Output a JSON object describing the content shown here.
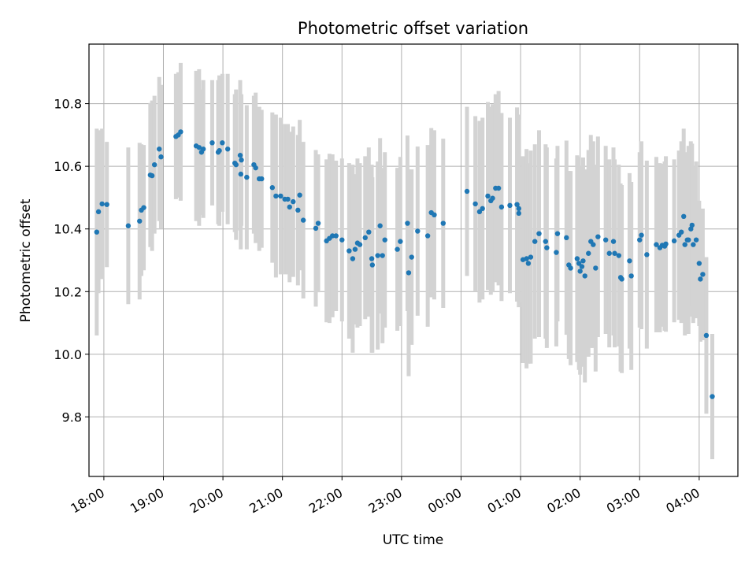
{
  "chart_data": {
    "type": "scatter",
    "title": "Photometric offset variation",
    "xlabel": "UTC time",
    "ylabel": "Photometric offset",
    "grid": true,
    "x_unit": "hours since 18:00 UTC (values beyond 6.0 are after midnight)",
    "xlim": [
      -0.25,
      10.65
    ],
    "ylim": [
      9.61,
      10.99
    ],
    "x_ticks": [
      {
        "value": 0,
        "label": "18:00"
      },
      {
        "value": 1,
        "label": "19:00"
      },
      {
        "value": 2,
        "label": "20:00"
      },
      {
        "value": 3,
        "label": "21:00"
      },
      {
        "value": 4,
        "label": "22:00"
      },
      {
        "value": 5,
        "label": "23:00"
      },
      {
        "value": 6,
        "label": "00:00"
      },
      {
        "value": 7,
        "label": "01:00"
      },
      {
        "value": 8,
        "label": "02:00"
      },
      {
        "value": 9,
        "label": "03:00"
      },
      {
        "value": 10,
        "label": "04:00"
      }
    ],
    "y_ticks": [
      {
        "value": 9.8,
        "label": "9.8"
      },
      {
        "value": 10.0,
        "label": "10.0"
      },
      {
        "value": 10.2,
        "label": "10.2"
      },
      {
        "value": 10.4,
        "label": "10.4"
      },
      {
        "value": 10.6,
        "label": "10.6"
      },
      {
        "value": 10.8,
        "label": "10.8"
      }
    ],
    "marker_color": "#1f77b4",
    "errorbar_color": "#d3d3d3",
    "series": [
      {
        "name": "offset",
        "points": [
          [
            -0.12,
            10.39,
            0.33
          ],
          [
            -0.09,
            10.455,
            0.26
          ],
          [
            -0.03,
            10.48,
            0.24
          ],
          [
            0.05,
            10.478,
            0.2
          ],
          [
            0.41,
            10.41,
            0.25
          ],
          [
            0.6,
            10.425,
            0.25
          ],
          [
            0.63,
            10.46,
            0.21
          ],
          [
            0.67,
            10.468,
            0.2
          ],
          [
            0.78,
            10.572,
            0.23
          ],
          [
            0.81,
            10.57,
            0.24
          ],
          [
            0.85,
            10.605,
            0.22
          ],
          [
            0.93,
            10.655,
            0.23
          ],
          [
            0.96,
            10.63,
            0.23
          ],
          [
            1.21,
            10.695,
            0.2
          ],
          [
            1.25,
            10.7,
            0.2
          ],
          [
            1.29,
            10.71,
            0.22
          ],
          [
            1.55,
            10.665,
            0.24
          ],
          [
            1.6,
            10.66,
            0.25
          ],
          [
            1.64,
            10.645,
            0.2
          ],
          [
            1.67,
            10.655,
            0.22
          ],
          [
            1.82,
            10.675,
            0.2
          ],
          [
            1.92,
            10.645,
            0.23
          ],
          [
            1.94,
            10.65,
            0.24
          ],
          [
            1.99,
            10.675,
            0.22
          ],
          [
            2.08,
            10.655,
            0.24
          ],
          [
            2.2,
            10.61,
            0.22
          ],
          [
            2.22,
            10.605,
            0.24
          ],
          [
            2.29,
            10.635,
            0.24
          ],
          [
            2.31,
            10.62,
            0.21
          ],
          [
            2.3,
            10.575,
            0.24
          ],
          [
            2.4,
            10.565,
            0.23
          ],
          [
            2.52,
            10.605,
            0.22
          ],
          [
            2.55,
            10.595,
            0.24
          ],
          [
            2.61,
            10.56,
            0.23
          ],
          [
            2.65,
            10.56,
            0.22
          ],
          [
            2.83,
            10.532,
            0.24
          ],
          [
            2.89,
            10.505,
            0.26
          ],
          [
            2.97,
            10.505,
            0.25
          ],
          [
            3.04,
            10.495,
            0.24
          ],
          [
            3.09,
            10.495,
            0.24
          ],
          [
            3.12,
            10.47,
            0.24
          ],
          [
            3.18,
            10.487,
            0.24
          ],
          [
            3.26,
            10.46,
            0.24
          ],
          [
            3.29,
            10.508,
            0.24
          ],
          [
            3.35,
            10.428,
            0.25
          ],
          [
            3.56,
            10.402,
            0.25
          ],
          [
            3.6,
            10.418,
            0.22
          ],
          [
            3.74,
            10.362,
            0.26
          ],
          [
            3.79,
            10.37,
            0.27
          ],
          [
            3.84,
            10.378,
            0.26
          ],
          [
            3.9,
            10.378,
            0.24
          ],
          [
            4.0,
            10.365,
            0.26
          ],
          [
            4.12,
            10.33,
            0.28
          ],
          [
            4.18,
            10.305,
            0.3
          ],
          [
            4.22,
            10.335,
            0.24
          ],
          [
            4.26,
            10.355,
            0.27
          ],
          [
            4.3,
            10.35,
            0.26
          ],
          [
            4.39,
            10.372,
            0.26
          ],
          [
            4.45,
            10.39,
            0.27
          ],
          [
            4.5,
            10.305,
            0.3
          ],
          [
            4.51,
            10.285,
            0.28
          ],
          [
            4.6,
            10.315,
            0.3
          ],
          [
            4.64,
            10.41,
            0.28
          ],
          [
            4.68,
            10.315,
            0.28
          ],
          [
            4.72,
            10.365,
            0.28
          ],
          [
            4.93,
            10.335,
            0.26
          ],
          [
            4.98,
            10.36,
            0.27
          ],
          [
            5.1,
            10.418,
            0.28
          ],
          [
            5.12,
            10.26,
            0.33
          ],
          [
            5.17,
            10.31,
            0.28
          ],
          [
            5.27,
            10.393,
            0.27
          ],
          [
            5.44,
            10.378,
            0.29
          ],
          [
            5.5,
            10.452,
            0.27
          ],
          [
            5.55,
            10.445,
            0.27
          ],
          [
            5.7,
            10.418,
            0.27
          ],
          [
            6.1,
            10.52,
            0.27
          ],
          [
            6.24,
            10.48,
            0.28
          ],
          [
            6.31,
            10.455,
            0.29
          ],
          [
            6.36,
            10.465,
            0.29
          ],
          [
            6.45,
            10.505,
            0.3
          ],
          [
            6.5,
            10.49,
            0.3
          ],
          [
            6.53,
            10.498,
            0.3
          ],
          [
            6.58,
            10.53,
            0.3
          ],
          [
            6.63,
            10.53,
            0.31
          ],
          [
            6.68,
            10.47,
            0.3
          ],
          [
            6.82,
            10.475,
            0.28
          ],
          [
            6.94,
            10.478,
            0.31
          ],
          [
            6.97,
            10.465,
            0.3
          ],
          [
            6.97,
            10.45,
            0.3
          ],
          [
            7.04,
            10.302,
            0.33
          ],
          [
            7.1,
            10.305,
            0.35
          ],
          [
            7.13,
            10.29,
            0.32
          ],
          [
            7.17,
            10.31,
            0.34
          ],
          [
            7.24,
            10.36,
            0.31
          ],
          [
            7.31,
            10.385,
            0.33
          ],
          [
            7.42,
            10.36,
            0.31
          ],
          [
            7.44,
            10.34,
            0.32
          ],
          [
            7.6,
            10.325,
            0.3
          ],
          [
            7.62,
            10.385,
            0.28
          ],
          [
            7.77,
            10.372,
            0.31
          ],
          [
            7.81,
            10.285,
            0.3
          ],
          [
            7.84,
            10.275,
            0.31
          ],
          [
            7.95,
            10.305,
            0.33
          ],
          [
            7.98,
            10.29,
            0.34
          ],
          [
            8.0,
            10.265,
            0.33
          ],
          [
            8.03,
            10.28,
            0.32
          ],
          [
            8.05,
            10.298,
            0.33
          ],
          [
            8.08,
            10.25,
            0.34
          ],
          [
            8.14,
            10.322,
            0.33
          ],
          [
            8.18,
            10.36,
            0.34
          ],
          [
            8.22,
            10.35,
            0.33
          ],
          [
            8.26,
            10.275,
            0.33
          ],
          [
            8.3,
            10.375,
            0.32
          ],
          [
            8.43,
            10.365,
            0.3
          ],
          [
            8.49,
            10.322,
            0.3
          ],
          [
            8.56,
            10.36,
            0.3
          ],
          [
            8.58,
            10.322,
            0.3
          ],
          [
            8.65,
            10.315,
            0.29
          ],
          [
            8.68,
            10.245,
            0.3
          ],
          [
            8.7,
            10.24,
            0.3
          ],
          [
            8.83,
            10.298,
            0.28
          ],
          [
            8.86,
            10.25,
            0.3
          ],
          [
            9.0,
            10.365,
            0.28
          ],
          [
            9.03,
            10.38,
            0.3
          ],
          [
            9.12,
            10.318,
            0.3
          ],
          [
            9.28,
            10.35,
            0.28
          ],
          [
            9.34,
            10.34,
            0.27
          ],
          [
            9.38,
            10.348,
            0.26
          ],
          [
            9.42,
            10.345,
            0.27
          ],
          [
            9.44,
            10.352,
            0.28
          ],
          [
            9.58,
            10.362,
            0.26
          ],
          [
            9.66,
            10.38,
            0.27
          ],
          [
            9.7,
            10.39,
            0.29
          ],
          [
            9.74,
            10.44,
            0.28
          ],
          [
            9.76,
            10.35,
            0.29
          ],
          [
            9.8,
            10.365,
            0.28
          ],
          [
            9.82,
            10.365,
            0.3
          ],
          [
            9.86,
            10.4,
            0.28
          ],
          [
            9.88,
            10.412,
            0.26
          ],
          [
            9.9,
            10.35,
            0.25
          ],
          [
            9.95,
            10.365,
            0.25
          ],
          [
            10.0,
            10.29,
            0.2
          ],
          [
            10.02,
            10.24,
            0.2
          ],
          [
            10.06,
            10.255,
            0.21
          ],
          [
            10.12,
            10.06,
            0.25
          ],
          [
            10.22,
            9.865,
            0.2
          ]
        ]
      }
    ]
  }
}
